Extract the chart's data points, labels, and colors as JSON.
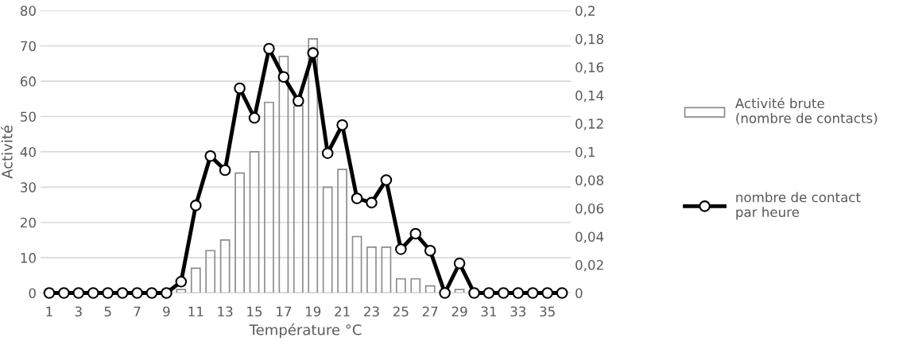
{
  "chart_data": {
    "type": "bar",
    "xlabel": "Température °C",
    "ylabel": "Activité",
    "categories": [
      "1",
      null,
      "3",
      null,
      "5",
      null,
      "7",
      null,
      "9",
      null,
      "11",
      null,
      "13",
      null,
      "15",
      null,
      "17",
      null,
      "19",
      null,
      "21",
      null,
      "23",
      null,
      "25",
      null,
      "27",
      null,
      "29",
      null,
      "31",
      null,
      "33",
      null,
      "35",
      null
    ],
    "series": [
      {
        "name": "Activité brute\n(nombre de contacts)",
        "color": "#8c8c8c",
        "values": [
          0,
          0,
          0,
          0,
          0,
          0,
          0,
          0,
          0,
          1,
          7,
          12,
          15,
          34,
          40,
          54,
          67,
          53,
          72,
          30,
          35,
          16,
          13,
          13,
          4,
          4,
          2,
          0,
          1,
          0,
          0,
          0,
          0,
          0,
          0,
          0
        ]
      },
      {
        "name": "nombre de contact\npar heure",
        "type": "line",
        "axis": "y2",
        "color": "#000000",
        "values": [
          0,
          0,
          0,
          0,
          0,
          0,
          0,
          0,
          0,
          0.008,
          0.062,
          0.097,
          0.087,
          0.145,
          0.124,
          0.173,
          0.153,
          0.136,
          0.17,
          0.099,
          0.119,
          0.067,
          0.064,
          0.08,
          0.031,
          0.042,
          0.03,
          0,
          0.021,
          0,
          0,
          0,
          0,
          0,
          0,
          0
        ]
      }
    ],
    "ylim": [
      0,
      80
    ],
    "yticks": [
      0,
      10,
      20,
      30,
      40,
      50,
      60,
      70,
      80
    ],
    "y2lim": [
      0,
      0.2
    ],
    "y2ticks": [
      {
        "value": 0,
        "label": "0"
      },
      {
        "value": 0.02,
        "label": "0,02"
      },
      {
        "value": 0.04,
        "label": "0,04"
      },
      {
        "value": 0.06,
        "label": "0,06"
      },
      {
        "value": 0.08,
        "label": "0,08"
      },
      {
        "value": 0.1,
        "label": "0,1"
      },
      {
        "value": 0.12,
        "label": "0,12"
      },
      {
        "value": 0.14,
        "label": "0,14"
      },
      {
        "value": 0.16,
        "label": "0,16"
      },
      {
        "value": 0.18,
        "label": "0,18"
      },
      {
        "value": 0.2,
        "label": "0,2"
      }
    ],
    "grid": "y",
    "legend": "right",
    "marker": "circle",
    "line_style": "solid"
  }
}
